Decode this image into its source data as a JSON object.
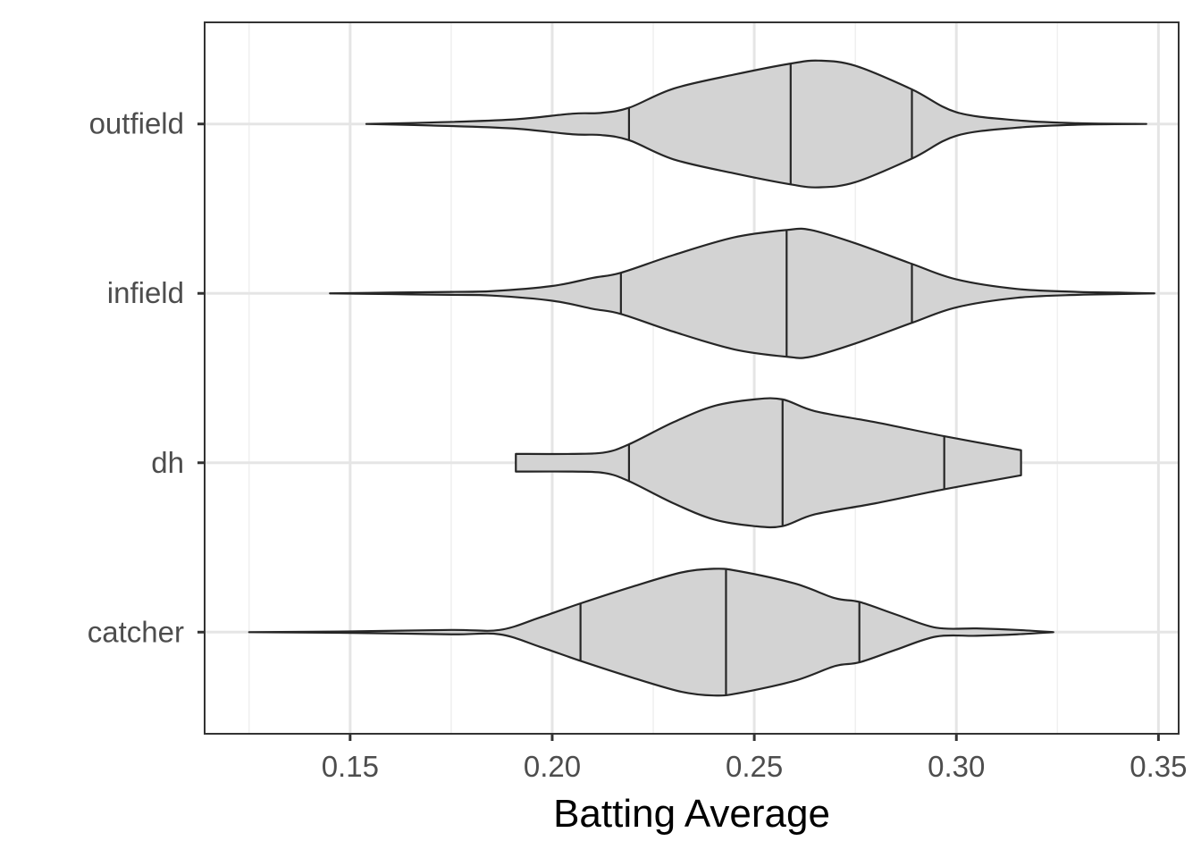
{
  "chart_data": {
    "type": "violin",
    "orientation": "horizontal",
    "xlabel": "Batting Average",
    "ylabel": "",
    "xlim": [
      0.114,
      0.355
    ],
    "x_ticks": [
      0.15,
      0.2,
      0.25,
      0.3,
      0.35
    ],
    "x_tick_labels": [
      "0.15",
      "0.20",
      "0.25",
      "0.30",
      "0.35"
    ],
    "categories": [
      "catcher",
      "dh",
      "infield",
      "outfield"
    ],
    "fill_color": "#d3d3d3",
    "outline_color": "#262626",
    "grid": true,
    "series": [
      {
        "name": "catcher",
        "min": 0.125,
        "max": 0.324,
        "quantiles": [
          0.207,
          0.243,
          0.276
        ],
        "density": [
          [
            0.125,
            0.0
          ],
          [
            0.15,
            0.01
          ],
          [
            0.175,
            0.03
          ],
          [
            0.187,
            0.03
          ],
          [
            0.197,
            0.2
          ],
          [
            0.207,
            0.39
          ],
          [
            0.22,
            0.62
          ],
          [
            0.232,
            0.81
          ],
          [
            0.24,
            0.86
          ],
          [
            0.246,
            0.83
          ],
          [
            0.26,
            0.66
          ],
          [
            0.27,
            0.46
          ],
          [
            0.276,
            0.41
          ],
          [
            0.285,
            0.24
          ],
          [
            0.295,
            0.06
          ],
          [
            0.305,
            0.05
          ],
          [
            0.315,
            0.03
          ],
          [
            0.324,
            0.0
          ]
        ]
      },
      {
        "name": "dh",
        "min": 0.191,
        "max": 0.316,
        "quantiles": [
          0.219,
          0.257,
          0.297
        ],
        "density": [
          [
            0.191,
            0.12
          ],
          [
            0.205,
            0.12
          ],
          [
            0.213,
            0.14
          ],
          [
            0.219,
            0.25
          ],
          [
            0.23,
            0.55
          ],
          [
            0.24,
            0.77
          ],
          [
            0.25,
            0.86
          ],
          [
            0.257,
            0.86
          ],
          [
            0.265,
            0.7
          ],
          [
            0.28,
            0.55
          ],
          [
            0.297,
            0.36
          ],
          [
            0.316,
            0.17
          ]
        ]
      },
      {
        "name": "infield",
        "min": 0.145,
        "max": 0.349,
        "quantiles": [
          0.217,
          0.258,
          0.289
        ],
        "density": [
          [
            0.145,
            0.0
          ],
          [
            0.16,
            0.01
          ],
          [
            0.175,
            0.02
          ],
          [
            0.185,
            0.03
          ],
          [
            0.2,
            0.1
          ],
          [
            0.21,
            0.21
          ],
          [
            0.217,
            0.28
          ],
          [
            0.23,
            0.52
          ],
          [
            0.245,
            0.76
          ],
          [
            0.258,
            0.86
          ],
          [
            0.264,
            0.86
          ],
          [
            0.275,
            0.68
          ],
          [
            0.289,
            0.4
          ],
          [
            0.3,
            0.19
          ],
          [
            0.315,
            0.06
          ],
          [
            0.33,
            0.02
          ],
          [
            0.34,
            0.01
          ],
          [
            0.349,
            0.0
          ]
        ]
      },
      {
        "name": "outfield",
        "min": 0.154,
        "max": 0.347,
        "quantiles": [
          0.219,
          0.259,
          0.289
        ],
        "density": [
          [
            0.154,
            0.0
          ],
          [
            0.17,
            0.02
          ],
          [
            0.19,
            0.06
          ],
          [
            0.205,
            0.14
          ],
          [
            0.212,
            0.15
          ],
          [
            0.219,
            0.22
          ],
          [
            0.23,
            0.48
          ],
          [
            0.245,
            0.67
          ],
          [
            0.259,
            0.82
          ],
          [
            0.266,
            0.86
          ],
          [
            0.275,
            0.79
          ],
          [
            0.289,
            0.47
          ],
          [
            0.3,
            0.16
          ],
          [
            0.315,
            0.05
          ],
          [
            0.33,
            0.01
          ],
          [
            0.347,
            0.0
          ]
        ]
      }
    ]
  }
}
